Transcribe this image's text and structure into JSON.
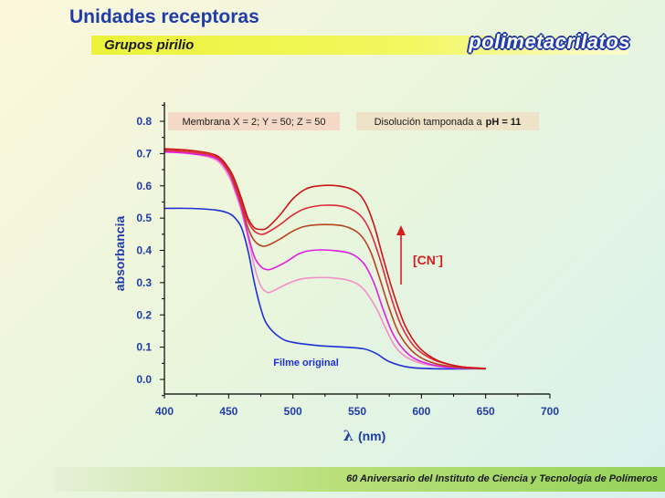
{
  "header": {
    "title": "Unidades receptoras",
    "subtitle": "Grupos pirilio",
    "brand": "polimetacrilatos"
  },
  "footer": {
    "text": "60 Aniversario del Instituto de Ciencia y Tecnología de Polímeros"
  },
  "colors": {
    "title": "#1f3ca8",
    "axis_text": "#1f3ca8",
    "filme": "#1f2fd6",
    "arrow": "#d41e1e",
    "box_left": "#f4d9c6",
    "box_right": "#eee3c8"
  },
  "chart_data": {
    "type": "line",
    "xlabel_symbol": "λ",
    "xlabel_unit": "(nm)",
    "ylabel": "absorbancia",
    "xlim": [
      400,
      700
    ],
    "ylim": [
      0,
      0.8
    ],
    "x_ticks": [
      "400",
      "450",
      "500",
      "550",
      "600",
      "650",
      "700"
    ],
    "y_ticks": [
      "0.0",
      "0.1",
      "0.2",
      "0.3",
      "0.4",
      "0.5",
      "0.6",
      "0.7",
      "0.8"
    ],
    "legend_left": "Membrana X = 2; Y = 50; Z = 50",
    "legend_right_prefix": "Disolución tamponada a",
    "legend_right_bold": "pH = 11",
    "arrow_label": "[CN",
    "arrow_label_sup": "-",
    "arrow_label_end": "]",
    "series_label": "Filme original",
    "series": [
      {
        "color": "#1f2fd6",
        "points": [
          [
            400,
            0.53
          ],
          [
            420,
            0.53
          ],
          [
            440,
            0.525
          ],
          [
            450,
            0.515
          ],
          [
            455,
            0.5
          ],
          [
            460,
            0.47
          ],
          [
            465,
            0.4
          ],
          [
            470,
            0.3
          ],
          [
            475,
            0.22
          ],
          [
            480,
            0.17
          ],
          [
            490,
            0.13
          ],
          [
            500,
            0.115
          ],
          [
            520,
            0.105
          ],
          [
            540,
            0.1
          ],
          [
            555,
            0.095
          ],
          [
            565,
            0.08
          ],
          [
            575,
            0.055
          ],
          [
            590,
            0.038
          ],
          [
            610,
            0.033
          ],
          [
            650,
            0.033
          ]
        ]
      },
      {
        "color": "#f48ec8",
        "points": [
          [
            400,
            0.705
          ],
          [
            420,
            0.7
          ],
          [
            440,
            0.68
          ],
          [
            450,
            0.63
          ],
          [
            455,
            0.58
          ],
          [
            460,
            0.52
          ],
          [
            465,
            0.44
          ],
          [
            470,
            0.35
          ],
          [
            475,
            0.29
          ],
          [
            480,
            0.27
          ],
          [
            485,
            0.275
          ],
          [
            495,
            0.295
          ],
          [
            505,
            0.31
          ],
          [
            515,
            0.315
          ],
          [
            530,
            0.315
          ],
          [
            545,
            0.305
          ],
          [
            555,
            0.28
          ],
          [
            565,
            0.22
          ],
          [
            572,
            0.16
          ],
          [
            580,
            0.1
          ],
          [
            590,
            0.065
          ],
          [
            605,
            0.045
          ],
          [
            625,
            0.036
          ],
          [
            650,
            0.033
          ]
        ]
      },
      {
        "color": "#e21ee2",
        "points": [
          [
            400,
            0.705
          ],
          [
            420,
            0.7
          ],
          [
            440,
            0.685
          ],
          [
            450,
            0.64
          ],
          [
            455,
            0.59
          ],
          [
            460,
            0.53
          ],
          [
            465,
            0.45
          ],
          [
            470,
            0.38
          ],
          [
            475,
            0.35
          ],
          [
            480,
            0.34
          ],
          [
            485,
            0.345
          ],
          [
            495,
            0.365
          ],
          [
            505,
            0.39
          ],
          [
            515,
            0.4
          ],
          [
            530,
            0.4
          ],
          [
            545,
            0.39
          ],
          [
            555,
            0.36
          ],
          [
            563,
            0.3
          ],
          [
            570,
            0.22
          ],
          [
            578,
            0.14
          ],
          [
            588,
            0.085
          ],
          [
            600,
            0.055
          ],
          [
            620,
            0.038
          ],
          [
            650,
            0.033
          ]
        ]
      },
      {
        "color": "#b8431e",
        "points": [
          [
            400,
            0.71
          ],
          [
            420,
            0.705
          ],
          [
            440,
            0.69
          ],
          [
            450,
            0.645
          ],
          [
            455,
            0.6
          ],
          [
            460,
            0.54
          ],
          [
            465,
            0.47
          ],
          [
            470,
            0.43
          ],
          [
            475,
            0.415
          ],
          [
            480,
            0.415
          ],
          [
            490,
            0.435
          ],
          [
            500,
            0.46
          ],
          [
            510,
            0.475
          ],
          [
            525,
            0.48
          ],
          [
            540,
            0.475
          ],
          [
            552,
            0.45
          ],
          [
            560,
            0.4
          ],
          [
            567,
            0.32
          ],
          [
            575,
            0.22
          ],
          [
            583,
            0.14
          ],
          [
            595,
            0.08
          ],
          [
            610,
            0.05
          ],
          [
            630,
            0.037
          ],
          [
            650,
            0.033
          ]
        ]
      },
      {
        "color": "#e0283c",
        "points": [
          [
            400,
            0.71
          ],
          [
            420,
            0.705
          ],
          [
            440,
            0.69
          ],
          [
            450,
            0.65
          ],
          [
            455,
            0.61
          ],
          [
            460,
            0.55
          ],
          [
            465,
            0.49
          ],
          [
            470,
            0.46
          ],
          [
            475,
            0.45
          ],
          [
            480,
            0.455
          ],
          [
            490,
            0.48
          ],
          [
            500,
            0.51
          ],
          [
            510,
            0.53
          ],
          [
            525,
            0.54
          ],
          [
            540,
            0.535
          ],
          [
            552,
            0.51
          ],
          [
            560,
            0.46
          ],
          [
            568,
            0.37
          ],
          [
            576,
            0.26
          ],
          [
            584,
            0.17
          ],
          [
            595,
            0.1
          ],
          [
            610,
            0.06
          ],
          [
            630,
            0.04
          ],
          [
            650,
            0.034
          ]
        ]
      },
      {
        "color": "#cc1414",
        "points": [
          [
            400,
            0.715
          ],
          [
            420,
            0.71
          ],
          [
            440,
            0.695
          ],
          [
            450,
            0.655
          ],
          [
            455,
            0.615
          ],
          [
            460,
            0.56
          ],
          [
            465,
            0.5
          ],
          [
            470,
            0.47
          ],
          [
            475,
            0.465
          ],
          [
            480,
            0.47
          ],
          [
            490,
            0.51
          ],
          [
            500,
            0.56
          ],
          [
            510,
            0.59
          ],
          [
            520,
            0.6
          ],
          [
            535,
            0.6
          ],
          [
            548,
            0.585
          ],
          [
            556,
            0.55
          ],
          [
            563,
            0.48
          ],
          [
            570,
            0.38
          ],
          [
            578,
            0.27
          ],
          [
            587,
            0.17
          ],
          [
            598,
            0.1
          ],
          [
            612,
            0.06
          ],
          [
            630,
            0.04
          ],
          [
            650,
            0.034
          ]
        ]
      }
    ]
  }
}
